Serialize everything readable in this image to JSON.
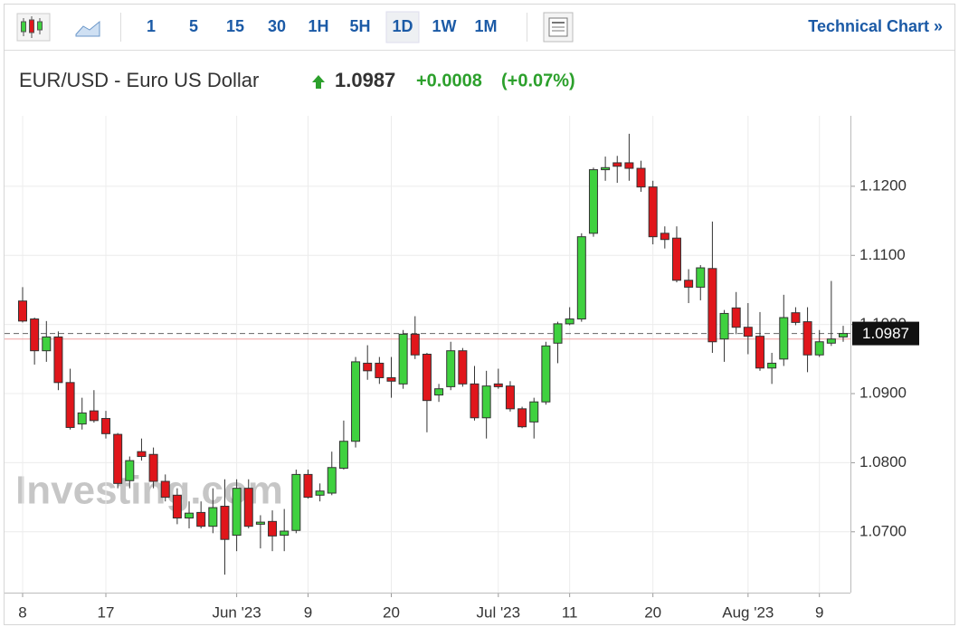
{
  "toolbar": {
    "intervals": [
      "1",
      "5",
      "15",
      "30",
      "1H",
      "5H",
      "1D",
      "1W",
      "1M"
    ],
    "selected": 6,
    "link": "Technical Chart »"
  },
  "header": {
    "title": "EUR/USD - Euro US Dollar",
    "price": "1.0987",
    "change": "+0.0008",
    "change_pct": "(+0.07%)"
  },
  "chart_data": {
    "type": "candlestick",
    "watermark": "Investing.com",
    "categories": [
      "8",
      null,
      null,
      null,
      null,
      null,
      null,
      "17",
      null,
      null,
      null,
      null,
      null,
      null,
      null,
      null,
      null,
      null,
      "Jun '23",
      null,
      null,
      null,
      null,
      null,
      "9",
      null,
      null,
      null,
      null,
      null,
      null,
      "20",
      null,
      null,
      null,
      null,
      null,
      null,
      null,
      null,
      "Jul '23",
      null,
      null,
      null,
      null,
      null,
      "11",
      null,
      null,
      null,
      null,
      null,
      null,
      "20",
      null,
      null,
      null,
      null,
      null,
      null,
      null,
      "Aug '23",
      null,
      null,
      null,
      null,
      null,
      "9",
      null,
      null
    ],
    "open": [
      1.1034,
      1.1008,
      1.0962,
      1.0982,
      1.0916,
      1.0856,
      1.0875,
      1.0864,
      1.0841,
      1.0774,
      1.0816,
      1.0812,
      1.0773,
      1.0753,
      1.072,
      1.0728,
      1.0708,
      1.0737,
      1.0695,
      1.0763,
      1.0711,
      1.0715,
      1.0695,
      1.0702,
      1.0783,
      1.0753,
      1.0756,
      1.0792,
      1.0831,
      1.0944,
      1.0944,
      1.0923,
      1.0914,
      1.0986,
      1.0957,
      1.0898,
      1.091,
      1.0962,
      1.0914,
      1.0865,
      1.0914,
      1.0911,
      1.0878,
      1.0859,
      1.0888,
      1.0973,
      1.1001,
      1.1008,
      1.1132,
      1.1224,
      1.1234,
      1.1234,
      1.1226,
      1.1199,
      1.1132,
      1.1125,
      1.1064,
      1.1054,
      1.1081,
      1.0979,
      1.1024,
      1.0996,
      1.0983,
      1.0937,
      1.095,
      1.1017,
      1.1004,
      1.0956,
      1.0973,
      1.0982
    ],
    "high": [
      1.1054,
      1.101,
      1.1005,
      1.099,
      1.0936,
      1.0894,
      1.0905,
      1.0875,
      1.0843,
      1.0809,
      1.0835,
      1.0822,
      1.0783,
      1.0763,
      1.0744,
      1.0744,
      1.0763,
      1.0776,
      1.0776,
      1.0776,
      1.0724,
      1.0731,
      1.0733,
      1.079,
      1.079,
      1.077,
      1.0816,
      1.0861,
      1.0953,
      1.097,
      1.0953,
      1.0953,
      1.0992,
      1.1012,
      1.0959,
      1.0914,
      1.0975,
      1.0966,
      1.094,
      1.0933,
      1.0936,
      1.0918,
      1.0881,
      1.0894,
      1.0975,
      1.1004,
      1.1025,
      1.1132,
      1.1227,
      1.1243,
      1.1244,
      1.1276,
      1.1237,
      1.1208,
      1.1142,
      1.1142,
      1.108,
      1.1086,
      1.1149,
      1.1021,
      1.1047,
      1.1031,
      1.1018,
      1.0959,
      1.1043,
      1.1025,
      1.1025,
      1.0992,
      1.1063,
      1.0998
    ],
    "low": [
      1.1003,
      1.0942,
      1.0946,
      1.0905,
      1.0848,
      1.0848,
      1.0858,
      1.0835,
      1.0763,
      1.0763,
      1.0803,
      1.0763,
      1.0744,
      1.0711,
      1.0705,
      1.0705,
      1.0698,
      1.0638,
      1.0672,
      1.0705,
      1.0676,
      1.0672,
      1.0672,
      1.0698,
      1.0748,
      1.0744,
      1.0753,
      1.079,
      1.0822,
      1.092,
      1.0914,
      1.0894,
      1.0907,
      1.095,
      1.0844,
      1.0888,
      1.0905,
      1.091,
      1.0861,
      1.0835,
      1.0907,
      1.0874,
      1.085,
      1.0835,
      1.0884,
      1.0944,
      1.0999,
      1.1004,
      1.1127,
      1.1208,
      1.1205,
      1.1208,
      1.1192,
      1.1116,
      1.111,
      1.1061,
      1.1031,
      1.1035,
      1.0959,
      1.0946,
      1.0986,
      1.0957,
      1.0933,
      1.0914,
      1.094,
      1.0999,
      1.0931,
      1.0953,
      1.0969,
      1.0975
    ],
    "close": [
      1.1005,
      1.0962,
      1.0982,
      1.0916,
      1.0851,
      1.0872,
      1.0861,
      1.0842,
      1.077,
      1.0803,
      1.0809,
      1.0773,
      1.075,
      1.072,
      1.0727,
      1.0708,
      1.0735,
      1.0689,
      1.0763,
      1.0708,
      1.0714,
      1.0694,
      1.0701,
      1.0783,
      1.075,
      1.0759,
      1.0793,
      1.0831,
      1.0946,
      1.0933,
      1.0923,
      1.0918,
      1.0986,
      1.0956,
      1.089,
      1.0907,
      1.0962,
      1.0914,
      1.0865,
      1.0911,
      1.091,
      1.0878,
      1.0852,
      1.0888,
      1.0969,
      1.1001,
      1.1008,
      1.1127,
      1.1224,
      1.1227,
      1.1229,
      1.1226,
      1.1199,
      1.1127,
      1.1123,
      1.1064,
      1.1054,
      1.1082,
      1.0975,
      1.1016,
      1.0996,
      1.0983,
      1.0937,
      1.0944,
      1.101,
      1.1003,
      1.0956,
      1.0975,
      1.0979,
      1.0987
    ],
    "up_color": "#3fd13f",
    "down_color": "#e0161b",
    "ylim": [
      1.0612,
      1.1302
    ],
    "yticks": [
      {
        "value": 1.07,
        "label": "1.0700"
      },
      {
        "value": 1.08,
        "label": "1.0800"
      },
      {
        "value": 1.09,
        "label": "1.0900"
      },
      {
        "value": 1.1,
        "label": "1.1000"
      },
      {
        "value": 1.11,
        "label": "1.1100"
      },
      {
        "value": 1.12,
        "label": "1.1200"
      }
    ],
    "last_price": 1.0987,
    "prev_close": 1.0979,
    "grid": true
  }
}
